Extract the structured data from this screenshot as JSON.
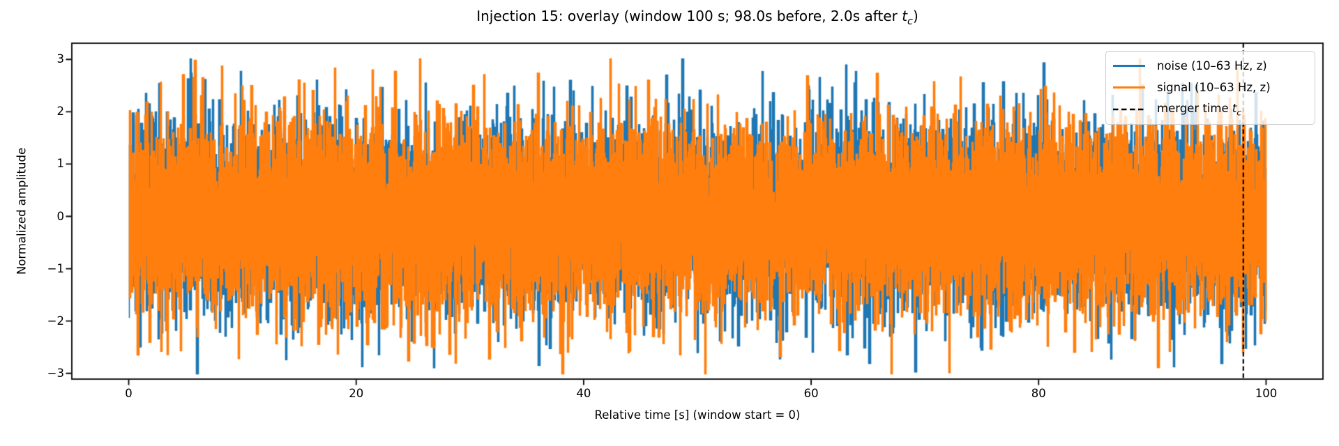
{
  "figure": {
    "background": "#ffffff",
    "text_color": "#000000"
  },
  "chart_data": {
    "type": "line",
    "title": "Injection 15: overlay (window 100 s; 98.0s before, 2.0s after tc)",
    "title_parts": {
      "prefix": "Injection 15: overlay (window 100 s; 98.0s before, 2.0s after ",
      "math_var": "t",
      "math_sub": "c",
      "suffix": ")"
    },
    "xlabel": "Relative time [s] (window start = 0)",
    "ylabel": "Normalized amplitude",
    "xlim": [
      -5,
      105
    ],
    "ylim": [
      -3.11,
      3.31
    ],
    "xticks": [
      0,
      20,
      40,
      60,
      80,
      100
    ],
    "xtick_labels": [
      "0",
      "20",
      "40",
      "60",
      "80",
      "100"
    ],
    "yticks": [
      3,
      2,
      1,
      0,
      -1,
      -2,
      -3
    ],
    "ytick_labels": [
      "3",
      "2",
      "1",
      "0",
      "−1",
      "−2",
      "−3"
    ],
    "grid": false,
    "window_s": 100,
    "before_tc_s": 98.0,
    "after_tc_s": 2.0,
    "merger_line": {
      "x": 98.0,
      "color": "#000000",
      "linestyle": "dashed"
    },
    "series": [
      {
        "id": "noise",
        "name": "noise (10–63 Hz, z)",
        "color": "#1f77b4",
        "kind": "band-limited gaussian noise, z-scored",
        "band_hz": [
          10,
          63
        ],
        "x_start_s": 0,
        "x_end_s": 100,
        "mean": 0,
        "std": 1,
        "dense_core_range": [
          -1.3,
          1.3
        ],
        "typical_envelope": [
          -1.8,
          1.8
        ],
        "approx_peak_abs": 3.0,
        "seed": 11
      },
      {
        "id": "signal",
        "name": "signal (10–63 Hz, z)",
        "color": "#ff7f0e",
        "kind": "band-limited gaussian noise with injected signal, z-scored",
        "band_hz": [
          10,
          63
        ],
        "x_start_s": 0,
        "x_end_s": 100,
        "mean": 0,
        "std": 1,
        "dense_core_range": [
          -1.3,
          1.3
        ],
        "typical_envelope": [
          -1.8,
          1.8
        ],
        "approx_peak_abs": 2.9,
        "seed": 71
      }
    ],
    "legend_position": "upper right",
    "legend": [
      {
        "id": "noise",
        "kind": "solid",
        "color": "#1f77b4",
        "label": "noise (10–63 Hz, z)"
      },
      {
        "id": "signal",
        "kind": "solid",
        "color": "#ff7f0e",
        "label": "signal (10–63 Hz, z)"
      },
      {
        "id": "merger-time",
        "kind": "dashed",
        "color": "#000000",
        "label_prefix": "merger time ",
        "label_math": "t",
        "label_sub": "c"
      }
    ],
    "generator": {
      "note": "dense noise recreated procedurally as per-pixel-column min/max envelope",
      "oversample_per_column": 6,
      "window_samples": 20,
      "sigma": 0.88,
      "clip_abs": 3.02
    }
  }
}
